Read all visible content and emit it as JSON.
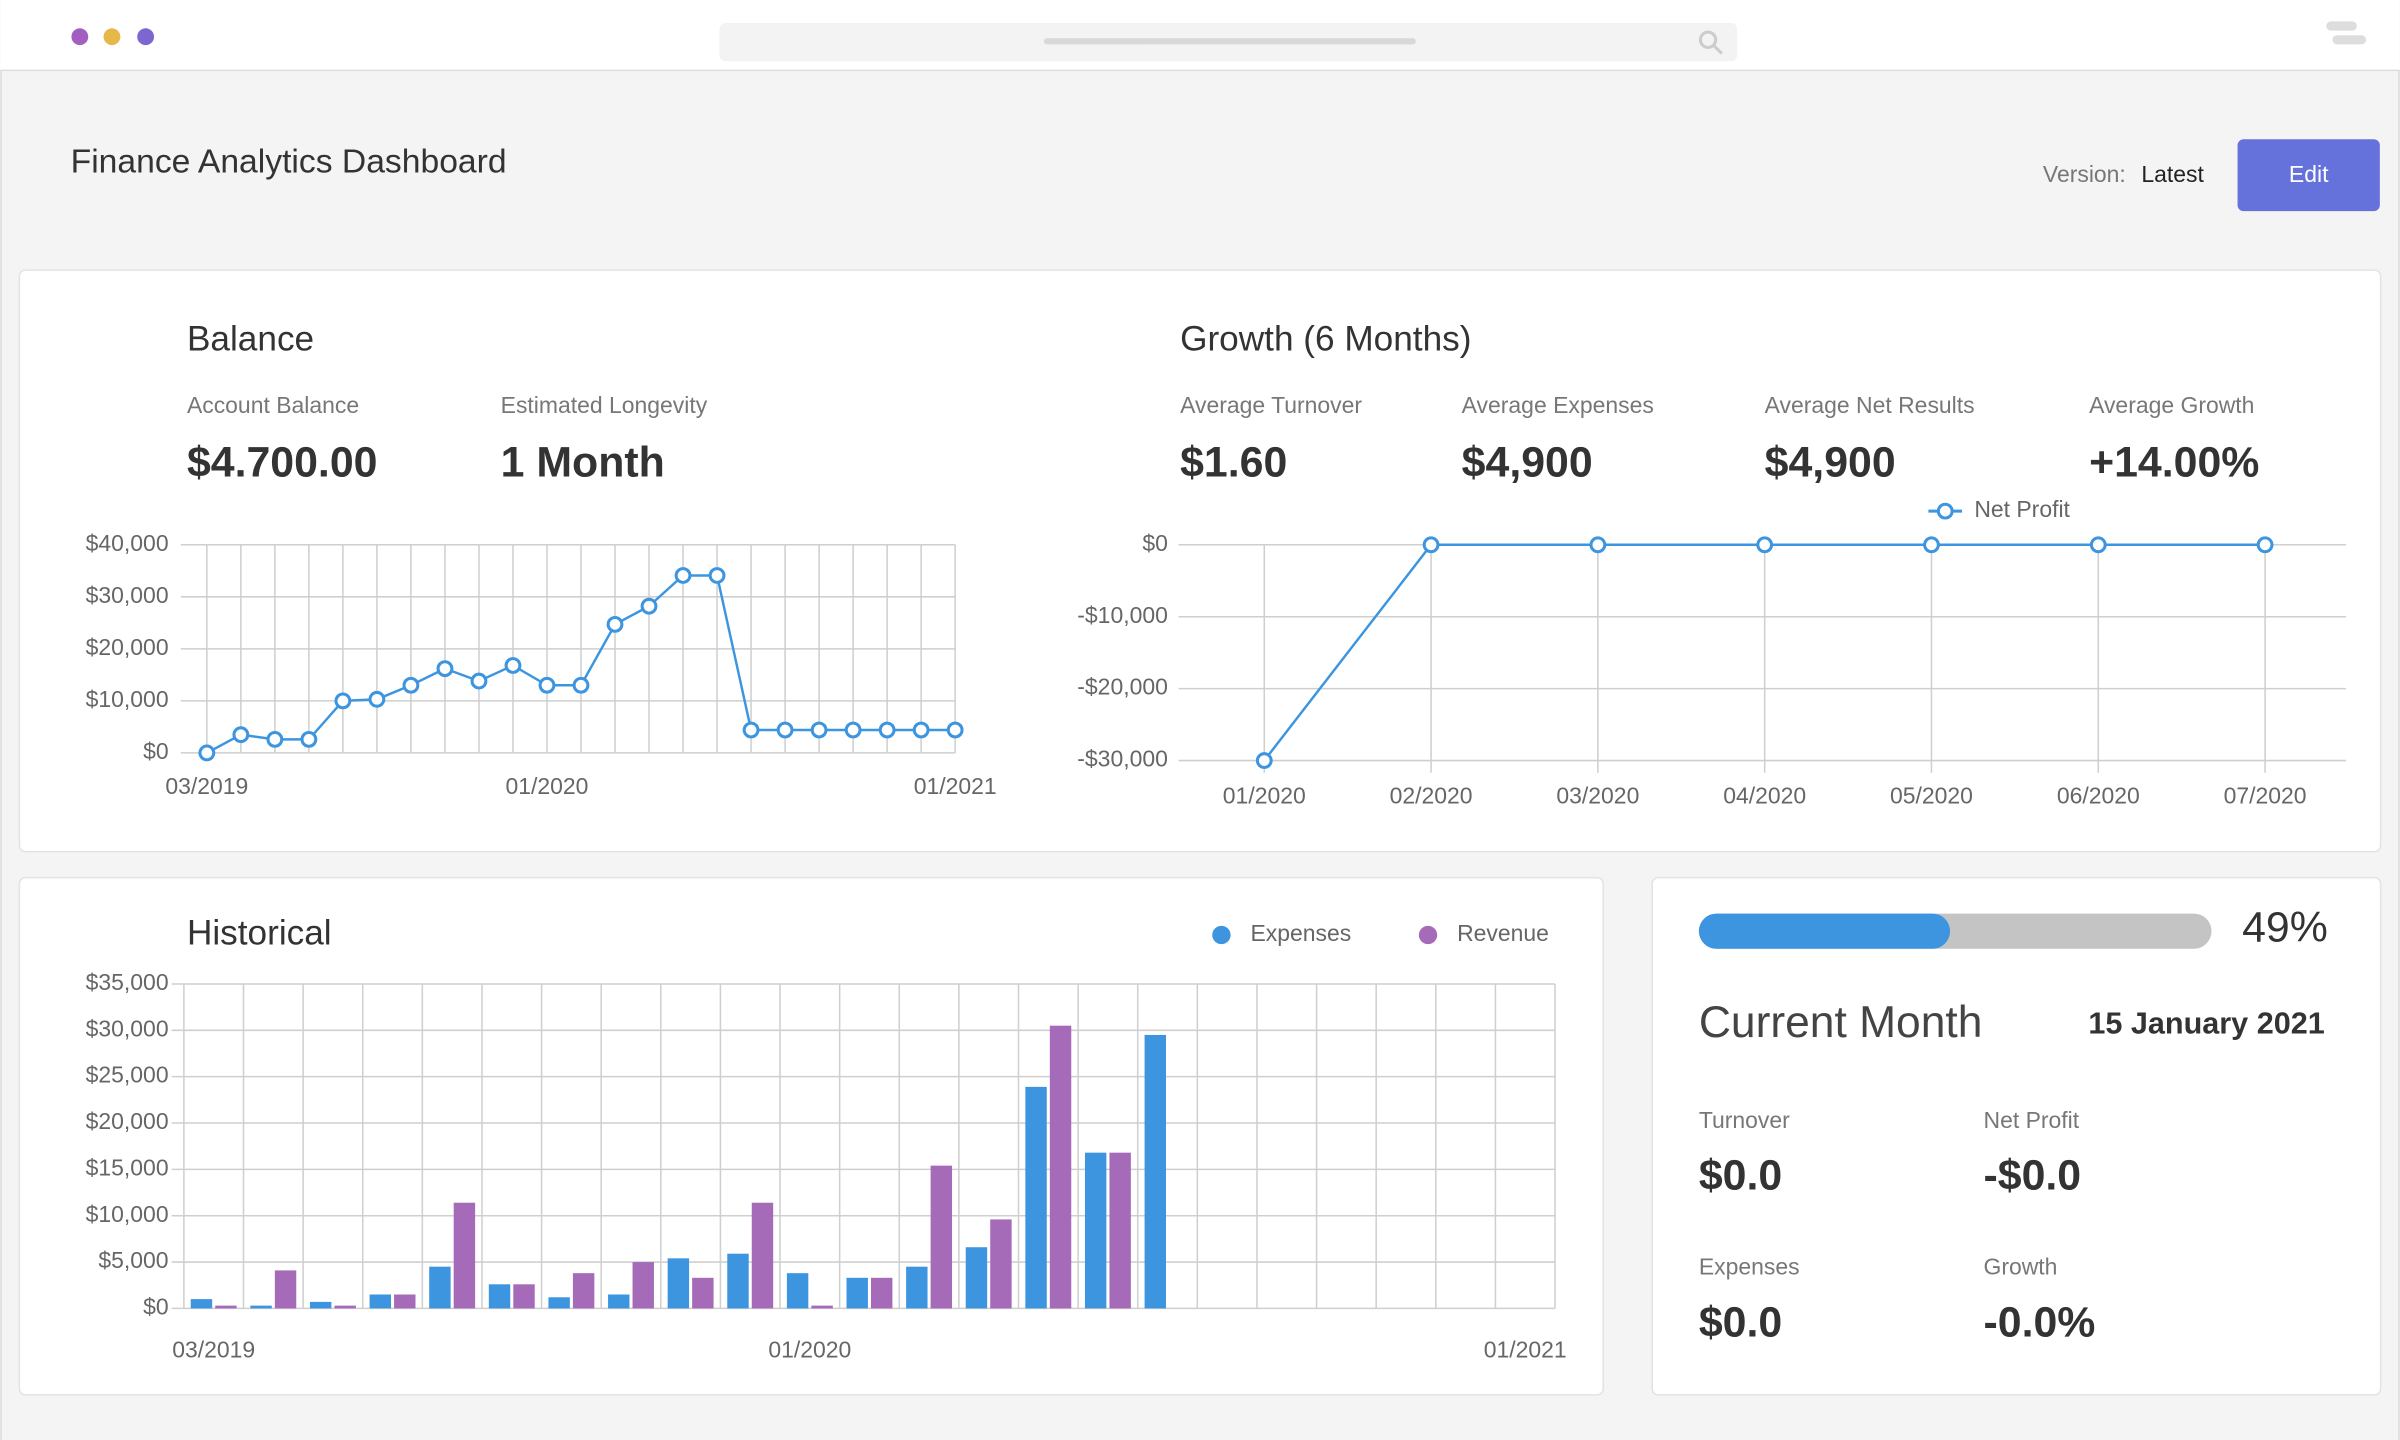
{
  "header": {
    "title": "Finance Analytics Dashboard",
    "version_label": "Version:",
    "version": "Latest",
    "edit_button": "Edit"
  },
  "balance": {
    "title": "Balance",
    "stats": [
      {
        "label": "Account Balance",
        "value": "$4.700.00"
      },
      {
        "label": "Estimated Longevity",
        "value": "1 Month"
      }
    ]
  },
  "growth": {
    "title": "Growth (6 Months)",
    "stats": [
      {
        "label": "Average Turnover",
        "value": "$1.60"
      },
      {
        "label": "Average Expenses",
        "value": "$4,900"
      },
      {
        "label": "Average Net Results",
        "value": "$4,900"
      },
      {
        "label": "Average Growth",
        "value": "+14.00%"
      }
    ]
  },
  "historical": {
    "title": "Historical"
  },
  "current_month": {
    "progress": {
      "value": 49,
      "label": "49%"
    },
    "title": "Current Month",
    "date": "15 January 2021",
    "stats": [
      {
        "label": "Turnover",
        "value": "$0.0"
      },
      {
        "label": "Net Profit",
        "value": "-$0.0"
      },
      {
        "label": "Expenses",
        "value": "$0.0"
      },
      {
        "label": "Growth",
        "value": "-0.0%"
      }
    ]
  },
  "chart_data": [
    {
      "type": "line",
      "categories": [
        "03/2019",
        null,
        null,
        null,
        null,
        null,
        null,
        null,
        null,
        null,
        "01/2020",
        null,
        null,
        null,
        null,
        null,
        null,
        null,
        null,
        null,
        null,
        null,
        "01/2021"
      ],
      "series": [
        {
          "color": "#3d95e0",
          "values": [
            0,
            3500,
            2600,
            2600,
            10000,
            10300,
            13000,
            16200,
            13800,
            16800,
            13000,
            13000,
            24700,
            28200,
            34100,
            34100,
            4400,
            4400,
            4400,
            4400,
            4400,
            4400,
            4400
          ]
        }
      ],
      "ylim": [
        0,
        40000
      ],
      "yticks": [
        {
          "value": 0,
          "label": "$0"
        },
        {
          "value": 10000,
          "label": "$10,000"
        },
        {
          "value": 20000,
          "label": "$20,000"
        },
        {
          "value": 30000,
          "label": "$30,000"
        },
        {
          "value": 40000,
          "label": "$40,000"
        }
      ],
      "grid": true
    },
    {
      "type": "line",
      "categories": [
        "01/2020",
        "02/2020",
        "03/2020",
        "04/2020",
        "05/2020",
        "06/2020",
        "07/2020"
      ],
      "series": [
        {
          "name": "Net Profit",
          "color": "#3d95e0",
          "values": [
            -30000,
            0,
            0,
            0,
            0,
            0,
            0
          ]
        }
      ],
      "ylim": [
        -30000,
        0
      ],
      "yticks": [
        {
          "value": 0,
          "label": "$0"
        },
        {
          "value": -10000,
          "label": "-$10,000"
        },
        {
          "value": -20000,
          "label": "-$20,000"
        },
        {
          "value": -30000,
          "label": "-$30,000"
        }
      ],
      "grid": true,
      "legend": "top"
    },
    {
      "type": "bar",
      "categories": [
        "03/2019",
        null,
        null,
        null,
        null,
        null,
        null,
        null,
        null,
        null,
        "01/2020",
        null,
        null,
        null,
        null,
        null,
        null,
        null,
        null,
        null,
        null,
        null,
        "01/2021"
      ],
      "series": [
        {
          "name": "Expenses",
          "color": "#3d95e0",
          "values": [
            1000,
            300,
            700,
            1500,
            4500,
            2600,
            1200,
            1500,
            5400,
            5900,
            3800,
            3300,
            4500,
            6600,
            23900,
            16800,
            29500,
            0,
            0,
            0,
            0,
            0,
            0
          ]
        },
        {
          "name": "Revenue",
          "color": "#a66bb8",
          "values": [
            300,
            4100,
            300,
            1500,
            11400,
            2600,
            3800,
            5000,
            3300,
            11400,
            300,
            3300,
            15400,
            9600,
            30500,
            16800,
            0,
            0,
            0,
            0,
            0,
            0,
            0
          ]
        }
      ],
      "ylim": [
        0,
        35000
      ],
      "yticks": [
        {
          "value": 0,
          "label": "$0"
        },
        {
          "value": 5000,
          "label": "$5,000"
        },
        {
          "value": 10000,
          "label": "$10,000"
        },
        {
          "value": 15000,
          "label": "$15,000"
        },
        {
          "value": 20000,
          "label": "$20,000"
        },
        {
          "value": 25000,
          "label": "$25,000"
        },
        {
          "value": 30000,
          "label": "$30,000"
        },
        {
          "value": 35000,
          "label": "$35,000"
        }
      ],
      "grid": true,
      "legend": "top-right"
    }
  ]
}
